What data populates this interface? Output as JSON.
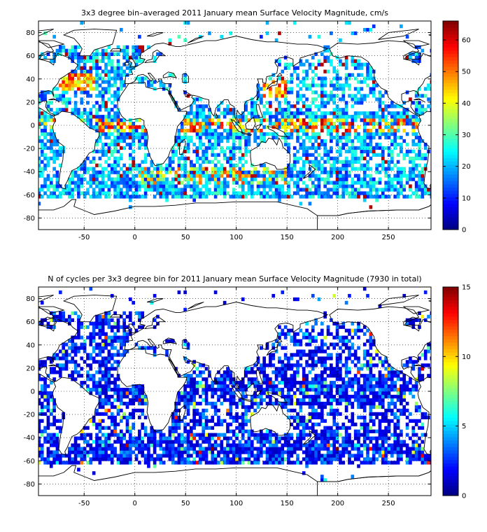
{
  "chart_data": [
    {
      "type": "heatmap",
      "title": "3x3 degree bin–averaged 2011 January mean Surface Velocity Magnitude, cm/s",
      "xlabel": "",
      "ylabel": "",
      "xlim": [
        -95,
        292
      ],
      "ylim": [
        -90,
        90
      ],
      "x_ticks": [
        "-50",
        "0",
        "50",
        "100",
        "150",
        "200",
        "250"
      ],
      "x_tick_values": [
        -50,
        0,
        50,
        100,
        150,
        200,
        250
      ],
      "y_ticks": [
        "80",
        "60",
        "40",
        "20",
        "0",
        "-20",
        "-40",
        "-60",
        "-80"
      ],
      "y_tick_values": [
        80,
        60,
        40,
        20,
        0,
        -20,
        -40,
        -60,
        -80
      ],
      "colorbar": {
        "min": 0,
        "max": 66,
        "ticks": [
          "0",
          "10",
          "20",
          "30",
          "40",
          "50",
          "60"
        ],
        "tick_values": [
          0,
          10,
          20,
          30,
          40,
          50,
          60
        ]
      },
      "colormap": "jet",
      "grid": true,
      "bin_size_deg": 3,
      "cell_value_profile": {
        "typical_range": [
          10,
          30
        ],
        "equatorial_band_max": 60,
        "antarctic_circumpolar_current_max": 55,
        "gulf_stream_max": 60,
        "kuroshio_max": 60
      }
    },
    {
      "type": "heatmap",
      "title": "N of cycles per 3x3 degree bin for 2011 January mean Surface Velocity Magnitude (7930 in total)",
      "xlabel": "",
      "ylabel": "",
      "xlim": [
        -95,
        292
      ],
      "ylim": [
        -90,
        90
      ],
      "x_ticks": [
        "-50",
        "0",
        "50",
        "100",
        "150",
        "200",
        "250"
      ],
      "x_tick_values": [
        -50,
        0,
        50,
        100,
        150,
        200,
        250
      ],
      "y_ticks": [
        "80",
        "60",
        "40",
        "20",
        "0",
        "-20",
        "-40",
        "-60",
        "-80"
      ],
      "y_tick_values": [
        80,
        60,
        40,
        20,
        0,
        -20,
        -40,
        -60,
        -80
      ],
      "colorbar": {
        "min": 0,
        "max": 15,
        "ticks": [
          "0",
          "5",
          "10",
          "15"
        ],
        "tick_values": [
          0,
          5,
          10,
          15
        ]
      },
      "colormap": "jet",
      "grid": true,
      "bin_size_deg": 3,
      "total_cycles": 7930,
      "cell_value_profile": {
        "typical_range": [
          1,
          4
        ],
        "occasional_max": 15
      }
    }
  ]
}
